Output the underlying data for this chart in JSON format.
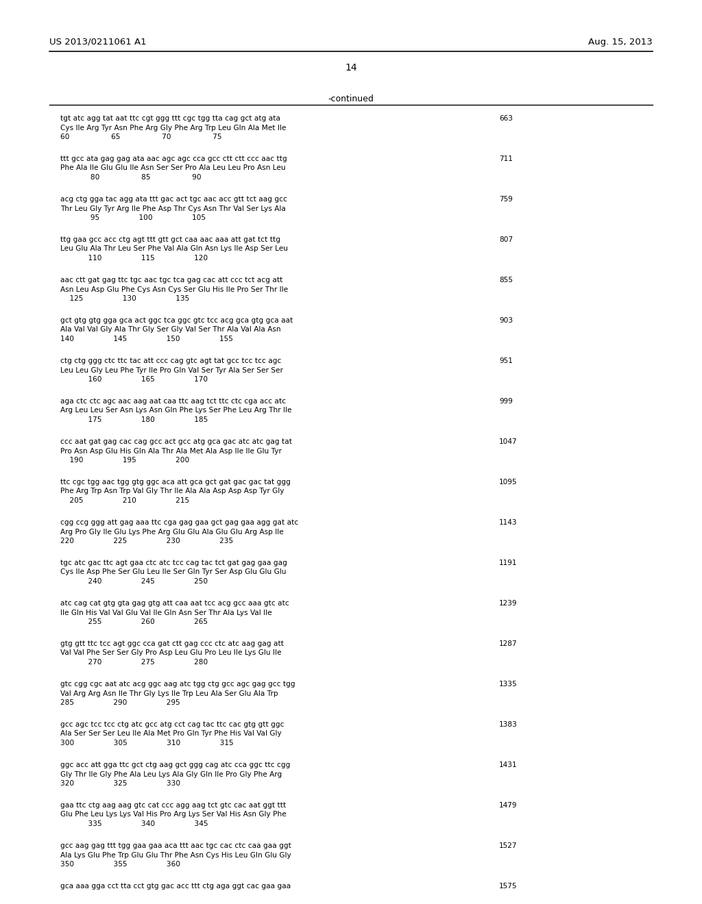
{
  "patent_number": "US 2013/0211061 A1",
  "date": "Aug. 15, 2013",
  "page_number": "14",
  "continued_label": "-continued",
  "background_color": "#ffffff",
  "text_color": "#000000",
  "sequences": [
    {
      "nucleotide": "tgt atc agg tat aat ttc cgt ggg ttt cgc tgg tta cag gct atg ata",
      "amino_acid": "Cys Ile Arg Tyr Asn Phe Arg Gly Phe Arg Trp Leu Gln Ala Met Ile",
      "numbering": "60                  65                  70                  75",
      "num_right": "663"
    },
    {
      "nucleotide": "ttt gcc ata gag gag ata aac agc agc cca gcc ctt ctt ccc aac ttg",
      "amino_acid": "Phe Ala Ile Glu Glu Ile Asn Ser Ser Pro Ala Leu Leu Pro Asn Leu",
      "numbering": "             80                  85                  90",
      "num_right": "711"
    },
    {
      "nucleotide": "acg ctg gga tac agg ata ttt gac act tgc aac acc gtt tct aag gcc",
      "amino_acid": "Thr Leu Gly Tyr Arg Ile Phe Asp Thr Cys Asn Thr Val Ser Lys Ala",
      "numbering": "             95                 100                 105",
      "num_right": "759"
    },
    {
      "nucleotide": "ttg gaa gcc acc ctg agt ttt gtt gct caa aac aaa att gat tct ttg",
      "amino_acid": "Leu Glu Ala Thr Leu Ser Phe Val Ala Gln Asn Lys Ile Asp Ser Leu",
      "numbering": "            110                 115                 120",
      "num_right": "807"
    },
    {
      "nucleotide": "aac ctt gat gag ttc tgc aac tgc tca gag cac att ccc tct acg att",
      "amino_acid": "Asn Leu Asp Glu Phe Cys Asn Cys Ser Glu His Ile Pro Ser Thr Ile",
      "numbering": "    125                 130                 135",
      "num_right": "855"
    },
    {
      "nucleotide": "gct gtg gtg gga gca act ggc tca ggc gtc tcc acg gca gtg gca aat",
      "amino_acid": "Ala Val Val Gly Ala Thr Gly Ser Gly Val Ser Thr Ala Val Ala Asn",
      "numbering": "140                 145                 150                 155",
      "num_right": "903"
    },
    {
      "nucleotide": "ctg ctg ggg ctc ttc tac att ccc cag gtc agt tat gcc tcc tcc agc",
      "amino_acid": "Leu Leu Gly Leu Phe Tyr Ile Pro Gln Val Ser Tyr Ala Ser Ser Ser",
      "numbering": "            160                 165                 170",
      "num_right": "951"
    },
    {
      "nucleotide": "aga ctc ctc agc aac aag aat caa ttc aag tct ttc ctc cga acc atc",
      "amino_acid": "Arg Leu Leu Ser Asn Lys Asn Gln Phe Lys Ser Phe Leu Arg Thr Ile",
      "numbering": "            175                 180                 185",
      "num_right": "999"
    },
    {
      "nucleotide": "ccc aat gat gag cac cag gcc act gcc atg gca gac atc atc gag tat",
      "amino_acid": "Pro Asn Asp Glu His Gln Ala Thr Ala Met Ala Asp Ile Ile Glu Tyr",
      "numbering": "    190                 195                 200",
      "num_right": "1047"
    },
    {
      "nucleotide": "ttc cgc tgg aac tgg gtg ggc aca att gca gct gat gac gac tat ggg",
      "amino_acid": "Phe Arg Trp Asn Trp Val Gly Thr Ile Ala Ala Asp Asp Asp Tyr Gly",
      "numbering": "    205                 210                 215",
      "num_right": "1095"
    },
    {
      "nucleotide": "cgg ccg ggg att gag aaa ttc cga gag gaa gct gag gaa agg gat atc",
      "amino_acid": "Arg Pro Gly Ile Glu Lys Phe Arg Glu Glu Ala Glu Glu Arg Asp Ile",
      "numbering": "220                 225                 230                 235",
      "num_right": "1143"
    },
    {
      "nucleotide": "tgc atc gac ttc agt gaa ctc atc tcc cag tac tct gat gag gaa gag",
      "amino_acid": "Cys Ile Asp Phe Ser Glu Leu Ile Ser Gln Tyr Ser Asp Glu Glu Glu",
      "numbering": "            240                 245                 250",
      "num_right": "1191"
    },
    {
      "nucleotide": "atc cag cat gtg gta gag gtg att caa aat tcc acg gcc aaa gtc atc",
      "amino_acid": "Ile Gln His Val Val Glu Val Ile Gln Asn Ser Thr Ala Lys Val Ile",
      "numbering": "            255                 260                 265",
      "num_right": "1239"
    },
    {
      "nucleotide": "gtg gtt ttc tcc agt ggc cca gat ctt gag ccc ctc atc aag gag att",
      "amino_acid": "Val Val Phe Ser Ser Gly Pro Asp Leu Glu Pro Leu Ile Lys Glu Ile",
      "numbering": "            270                 275                 280",
      "num_right": "1287"
    },
    {
      "nucleotide": "gtc cgg cgc aat atc acg ggc aag atc tgg ctg gcc agc gag gcc tgg",
      "amino_acid": "Val Arg Arg Asn Ile Thr Gly Lys Ile Trp Leu Ala Ser Glu Ala Trp",
      "numbering": "285                 290                 295",
      "num_right": "1335"
    },
    {
      "nucleotide": "gcc agc tcc tcc ctg atc gcc atg cct cag tac ttc cac gtg gtt ggc",
      "amino_acid": "Ala Ser Ser Ser Leu Ile Ala Met Pro Gln Tyr Phe His Val Val Gly",
      "numbering": "300                 305                 310                 315",
      "num_right": "1383"
    },
    {
      "nucleotide": "ggc acc att gga ttc gct ctg aag gct ggg cag atc cca ggc ttc cgg",
      "amino_acid": "Gly Thr Ile Gly Phe Ala Leu Lys Ala Gly Gln Ile Pro Gly Phe Arg",
      "numbering": "320                 325                 330",
      "num_right": "1431"
    },
    {
      "nucleotide": "gaa ttc ctg aag aag gtc cat ccc agg aag tct gtc cac aat ggt ttt",
      "amino_acid": "Glu Phe Leu Lys Lys Val His Pro Arg Lys Ser Val His Asn Gly Phe",
      "numbering": "            335                 340                 345",
      "num_right": "1479"
    },
    {
      "nucleotide": "gcc aag gag ttt tgg gaa gaa aca ttt aac tgc cac ctc caa gaa ggt",
      "amino_acid": "Ala Lys Glu Phe Trp Glu Glu Thr Phe Asn Cys His Leu Gln Glu Gly",
      "numbering": "350                 355                 360",
      "num_right": "1527"
    },
    {
      "nucleotide": "gca aaa gga cct tta cct gtg gac acc ttt ctg aga ggt cac gaa gaa",
      "amino_acid": "",
      "numbering": "",
      "num_right": "1575"
    }
  ]
}
